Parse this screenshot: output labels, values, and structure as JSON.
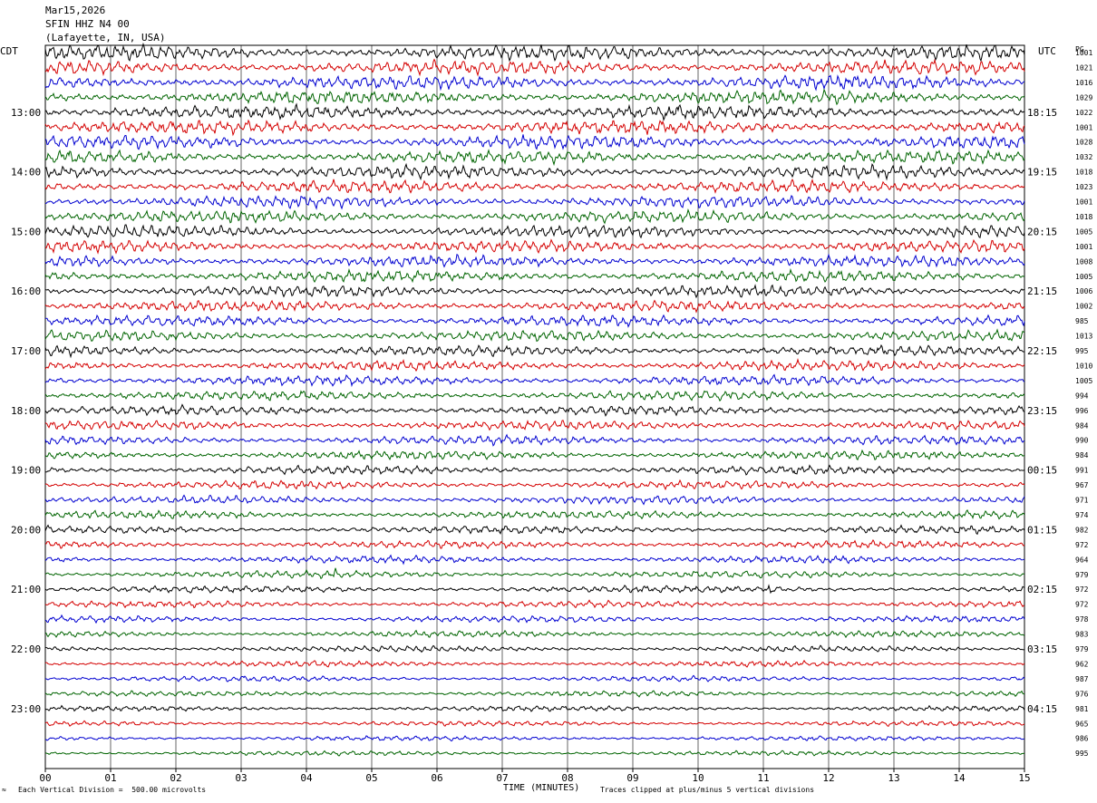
{
  "header": {
    "date": "Mar15,2026",
    "station": "SFIN HHZ N4 00",
    "location": "(Lafayette, IN, USA)"
  },
  "left_timezone": "CDT",
  "right_timezone": "UTC",
  "right_column_label": "PG",
  "footer": {
    "scale_note": "Each Vertical Division =  500.00 microvolts",
    "clip_note": "Traces clipped at plus/minus 5 vertical divisions",
    "scale_mark": "≈"
  },
  "colors": {
    "trace_cycle": [
      "#000000",
      "#d40000",
      "#0000d0",
      "#006400"
    ],
    "grid": "#000000"
  },
  "chart_data": {
    "type": "line",
    "xlabel": "TIME (MINUTES)",
    "xlim": [
      0,
      15
    ],
    "x_ticks": [
      "00",
      "01",
      "02",
      "03",
      "04",
      "05",
      "06",
      "07",
      "08",
      "09",
      "10",
      "11",
      "12",
      "13",
      "14",
      "15"
    ],
    "y_left_labels": [
      "13:00",
      "14:00",
      "15:00",
      "16:00",
      "17:00",
      "18:00",
      "19:00",
      "20:00",
      "21:00",
      "22:00",
      "23:00"
    ],
    "y_right_labels": [
      "18:15",
      "19:15",
      "20:15",
      "21:15",
      "22:15",
      "23:15",
      "00:15",
      "01:15",
      "02:15",
      "03:15",
      "04:15"
    ],
    "trace_count": 48,
    "traces_per_hour": 4,
    "trace_values": [
      "1001",
      "1021",
      "1016",
      "1029",
      "1022",
      "1001",
      "1028",
      "1032",
      "1018",
      "1023",
      "1001",
      "1018",
      "1005",
      "1001",
      "1008",
      "1005",
      "1006",
      "1002",
      "985",
      "1013",
      "995",
      "1010",
      "1005",
      "994",
      "996",
      "984",
      "990",
      "984",
      "991",
      "967",
      "971",
      "974",
      "982",
      "972",
      "964",
      "979",
      "972",
      "972",
      "978",
      "983",
      "979",
      "962",
      "987",
      "976",
      "981",
      "965",
      "986",
      "995"
    ],
    "events": [
      {
        "trace": 35,
        "minute": 4.4
      },
      {
        "trace": 36,
        "minute": 11.1
      }
    ]
  }
}
